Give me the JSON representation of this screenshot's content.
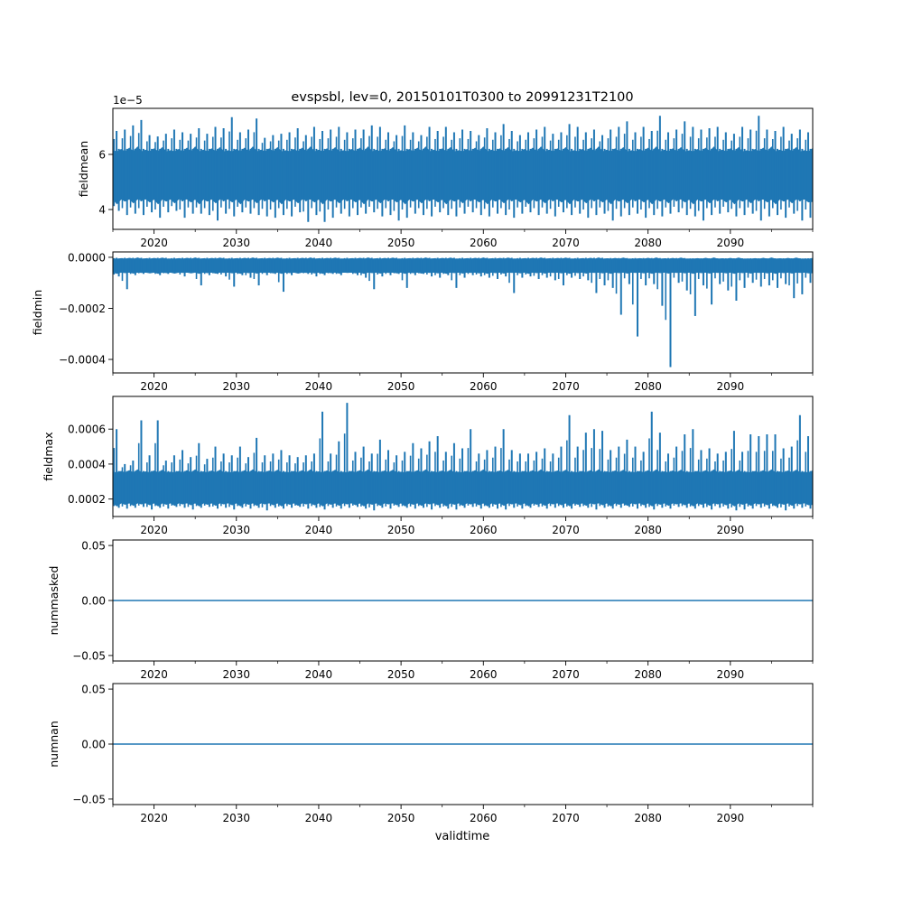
{
  "chart_data": {
    "type": "line",
    "title": "evspsbl, lev=0, 20150101T0300 to 20991231T2100",
    "xlabel": "validtime",
    "xlim": [
      2015,
      2100
    ],
    "x_major_ticks": [
      2020,
      2030,
      2040,
      2050,
      2060,
      2070,
      2080,
      2090
    ],
    "x_major_tick_labels": [
      "2020",
      "2030",
      "2040",
      "2050",
      "2060",
      "2070",
      "2080",
      "2090"
    ],
    "x_minor_ticks": [
      2015,
      2025,
      2035,
      2045,
      2055,
      2065,
      2075,
      2085,
      2095,
      2100
    ],
    "years": [
      2015,
      2016,
      2017,
      2018,
      2019,
      2020,
      2021,
      2022,
      2023,
      2024,
      2025,
      2026,
      2027,
      2028,
      2029,
      2030,
      2031,
      2032,
      2033,
      2034,
      2035,
      2036,
      2037,
      2038,
      2039,
      2040,
      2041,
      2042,
      2043,
      2044,
      2045,
      2046,
      2047,
      2048,
      2049,
      2050,
      2051,
      2052,
      2053,
      2054,
      2055,
      2056,
      2057,
      2058,
      2059,
      2060,
      2061,
      2062,
      2063,
      2064,
      2065,
      2066,
      2067,
      2068,
      2069,
      2070,
      2071,
      2072,
      2073,
      2074,
      2075,
      2076,
      2077,
      2078,
      2079,
      2080,
      2081,
      2082,
      2083,
      2084,
      2085,
      2086,
      2087,
      2088,
      2089,
      2090,
      2091,
      2092,
      2093,
      2094,
      2095,
      2096,
      2097,
      2098,
      2099
    ],
    "color": "#1f77b4",
    "panels": [
      {
        "ylabel": "fieldmean",
        "offset_label": "1e−5",
        "value_scale": 1e-05,
        "ylim": [
          3.28,
          7.67
        ],
        "yticks": [
          4,
          6
        ],
        "ytick_labels": [
          "4",
          "6"
        ],
        "typical_band": [
          4.3,
          6.2
        ],
        "annual_max": [
          6.85,
          6.9,
          7.05,
          7.25,
          6.7,
          6.65,
          6.75,
          6.9,
          6.8,
          6.75,
          6.95,
          6.75,
          7.0,
          6.95,
          7.35,
          6.8,
          6.9,
          7.3,
          6.6,
          6.7,
          6.75,
          6.8,
          6.95,
          6.7,
          7.0,
          6.85,
          6.9,
          7.0,
          6.8,
          6.9,
          6.9,
          7.05,
          7.0,
          6.8,
          6.7,
          7.05,
          6.8,
          6.7,
          7.0,
          6.85,
          7.0,
          6.8,
          6.9,
          6.85,
          6.7,
          6.95,
          6.8,
          7.1,
          6.85,
          6.7,
          6.8,
          6.9,
          7.0,
          6.75,
          6.8,
          7.1,
          7.0,
          6.8,
          6.9,
          6.7,
          6.9,
          7.0,
          7.2,
          6.8,
          7.0,
          6.85,
          7.4,
          6.8,
          6.9,
          7.2,
          7.0,
          6.9,
          6.95,
          7.0,
          6.8,
          6.75,
          7.0,
          6.9,
          7.4,
          6.9,
          6.85,
          7.0,
          6.75,
          6.9,
          6.8
        ],
        "annual_min": [
          3.95,
          3.8,
          3.85,
          3.8,
          3.9,
          3.7,
          3.9,
          3.95,
          3.7,
          3.85,
          3.85,
          3.8,
          3.6,
          3.85,
          3.75,
          3.9,
          3.85,
          3.8,
          3.75,
          3.7,
          3.8,
          3.75,
          3.9,
          3.55,
          3.8,
          3.55,
          3.7,
          3.85,
          3.75,
          3.8,
          3.85,
          3.9,
          3.75,
          3.8,
          3.6,
          3.7,
          3.85,
          3.8,
          3.75,
          3.9,
          3.8,
          3.75,
          3.85,
          3.9,
          3.8,
          3.75,
          3.85,
          3.8,
          3.7,
          3.85,
          3.9,
          3.8,
          3.85,
          3.75,
          3.9,
          3.8,
          3.85,
          3.7,
          3.8,
          3.85,
          3.6,
          3.75,
          3.8,
          3.85,
          3.7,
          3.8,
          3.75,
          3.85,
          3.9,
          3.8,
          3.75,
          3.6,
          3.8,
          3.85,
          3.9,
          3.75,
          3.8,
          3.85,
          3.6,
          3.75,
          3.8,
          3.7,
          3.85,
          3.6,
          3.7
        ]
      },
      {
        "ylabel": "fieldmin",
        "offset_label": "",
        "value_scale": 0.0001,
        "ylim": [
          -4.53,
          0.21
        ],
        "yticks": [
          -4,
          -2,
          0
        ],
        "ytick_labels": [
          "−0.0004",
          "−0.0002",
          "0.0000"
        ],
        "typical_band": [
          -0.6,
          -0.05
        ],
        "annual_max": [
          -0.02,
          -0.02,
          -0.02,
          -0.02,
          -0.02,
          -0.02,
          -0.02,
          -0.02,
          -0.02,
          -0.02,
          -0.02,
          -0.02,
          -0.02,
          -0.02,
          -0.02,
          -0.02,
          -0.02,
          -0.02,
          -0.02,
          -0.02,
          -0.02,
          -0.02,
          -0.02,
          -0.02,
          -0.02,
          -0.02,
          -0.02,
          -0.02,
          -0.02,
          -0.02,
          -0.02,
          -0.02,
          -0.02,
          -0.02,
          -0.02,
          -0.02,
          -0.02,
          -0.02,
          -0.02,
          -0.02,
          -0.02,
          -0.02,
          -0.02,
          -0.02,
          -0.02,
          -0.02,
          -0.02,
          -0.02,
          -0.02,
          -0.02,
          -0.02,
          -0.02,
          -0.02,
          -0.02,
          -0.02,
          -0.02,
          -0.02,
          -0.02,
          -0.02,
          -0.02,
          -0.03,
          -0.03,
          -0.03,
          -0.03,
          -0.03,
          -0.03,
          -0.03,
          -0.03,
          -0.03,
          -0.03,
          -0.04,
          -0.04,
          -0.04,
          -0.04,
          -0.04,
          -0.04,
          -0.04,
          -0.04,
          -0.04,
          -0.04,
          -0.04,
          -0.04,
          -0.04,
          -0.04,
          -0.04
        ],
        "annual_min": [
          -0.75,
          -1.25,
          -0.7,
          -0.65,
          -0.6,
          -0.7,
          -0.65,
          -0.6,
          -0.75,
          -0.6,
          -1.1,
          -0.7,
          -0.65,
          -0.75,
          -1.15,
          -0.7,
          -0.8,
          -1.1,
          -0.7,
          -0.65,
          -1.35,
          -0.7,
          -0.6,
          -0.65,
          -0.75,
          -0.7,
          -0.65,
          -0.7,
          -0.6,
          -0.7,
          -0.8,
          -1.25,
          -0.75,
          -0.7,
          -0.65,
          -1.2,
          -0.7,
          -0.65,
          -0.75,
          -0.8,
          -0.7,
          -1.2,
          -0.8,
          -0.7,
          -0.75,
          -0.8,
          -0.85,
          -0.75,
          -1.4,
          -0.8,
          -0.75,
          -0.85,
          -0.8,
          -0.9,
          -1.1,
          -0.8,
          -0.85,
          -0.9,
          -1.4,
          -1.1,
          -1.2,
          -2.25,
          -1.05,
          -3.1,
          -1.1,
          -1.05,
          -1.9,
          -4.3,
          -1.0,
          -1.3,
          -2.3,
          -1.1,
          -1.85,
          -1.05,
          -1.3,
          -1.7,
          -1.2,
          -1.0,
          -1.15,
          -1.1,
          -1.2,
          -1.05,
          -1.6,
          -1.45,
          -1.0
        ]
      },
      {
        "ylabel": "fieldmax",
        "offset_label": "",
        "value_scale": 0.0001,
        "ylim": [
          1.0,
          7.87
        ],
        "yticks": [
          2,
          4,
          6
        ],
        "ytick_labels": [
          "0.0002",
          "0.0004",
          "0.0006"
        ],
        "typical_band": [
          1.7,
          3.6
        ],
        "annual_max": [
          6.0,
          4.0,
          4.2,
          6.5,
          4.5,
          6.5,
          4.2,
          4.5,
          4.8,
          4.4,
          5.2,
          4.3,
          5.0,
          4.6,
          4.5,
          5.0,
          4.4,
          5.5,
          4.5,
          4.6,
          4.8,
          4.5,
          4.4,
          4.5,
          4.6,
          7.0,
          4.6,
          5.3,
          7.5,
          4.7,
          5.0,
          4.6,
          5.4,
          4.8,
          4.5,
          4.7,
          5.2,
          4.9,
          5.3,
          5.6,
          4.7,
          5.2,
          4.9,
          6.0,
          4.6,
          4.8,
          5.0,
          6.0,
          4.8,
          4.6,
          4.6,
          4.7,
          4.9,
          4.6,
          5.0,
          6.8,
          5.0,
          5.8,
          6.0,
          5.9,
          4.8,
          5.0,
          5.4,
          5.0,
          4.7,
          7.0,
          5.8,
          4.6,
          5.0,
          5.7,
          6.0,
          4.8,
          4.9,
          4.6,
          4.7,
          5.9,
          4.7,
          5.7,
          5.6,
          5.7,
          5.7,
          4.9,
          5.0,
          6.8,
          5.6
        ],
        "annual_min": [
          1.5,
          1.45,
          1.5,
          1.55,
          1.4,
          1.5,
          1.45,
          1.55,
          1.5,
          1.4,
          1.5,
          1.55,
          1.45,
          1.5,
          1.4,
          1.5,
          1.45,
          1.5,
          1.35,
          1.5,
          1.45,
          1.5,
          1.55,
          1.45,
          1.5,
          1.4,
          1.5,
          1.45,
          1.5,
          1.55,
          1.45,
          1.35,
          1.5,
          1.45,
          1.55,
          1.5,
          1.45,
          1.5,
          1.4,
          1.5,
          1.45,
          1.4,
          1.5,
          1.55,
          1.45,
          1.5,
          1.45,
          1.4,
          1.5,
          1.45,
          1.5,
          1.55,
          1.45,
          1.5,
          1.5,
          1.45,
          1.55,
          1.5,
          1.4,
          1.5,
          1.45,
          1.5,
          1.55,
          1.45,
          1.5,
          1.4,
          1.5,
          1.45,
          1.55,
          1.5,
          1.45,
          1.5,
          1.4,
          1.5,
          1.45,
          1.35,
          1.4,
          1.45,
          1.5,
          1.45,
          1.5,
          1.35,
          1.45,
          1.5,
          1.45
        ]
      },
      {
        "ylabel": "nummasked",
        "offset_label": "",
        "value_scale": 1,
        "ylim": [
          -0.055,
          0.055
        ],
        "yticks": [
          -0.05,
          0,
          0.05
        ],
        "ytick_labels": [
          "−0.05",
          "0.00",
          "0.05"
        ],
        "constant_value": 0
      },
      {
        "ylabel": "numnan",
        "offset_label": "",
        "value_scale": 1,
        "ylim": [
          -0.055,
          0.055
        ],
        "yticks": [
          -0.05,
          0,
          0.05
        ],
        "ytick_labels": [
          "−0.05",
          "0.00",
          "0.05"
        ],
        "constant_value": 0
      }
    ]
  }
}
